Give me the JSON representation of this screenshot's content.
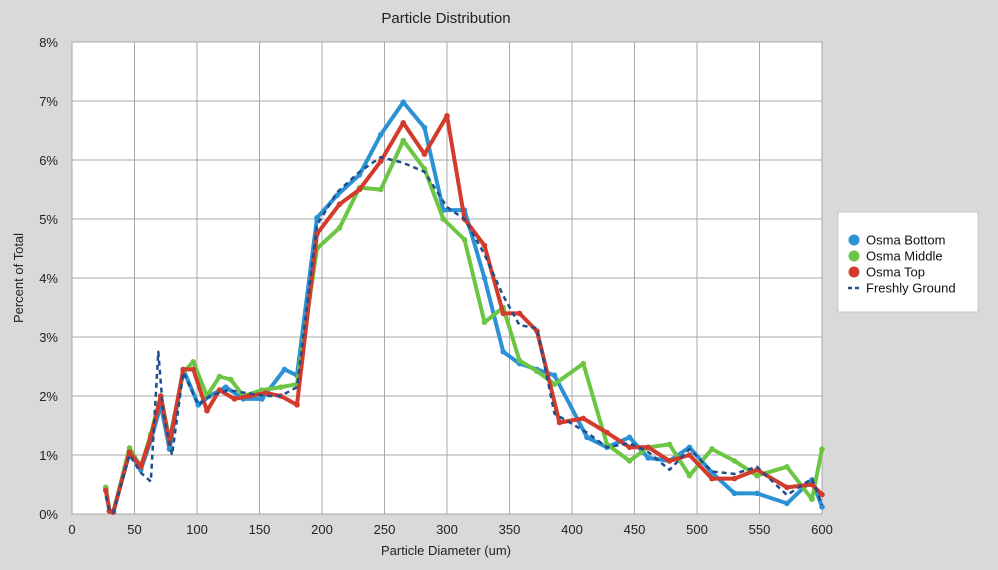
{
  "chart_data": {
    "type": "line",
    "title": "Particle Distribution",
    "xlabel": "Particle Diameter (um)",
    "ylabel": "Percent of Total",
    "xlim": [
      0,
      600
    ],
    "ylim": [
      0,
      8
    ],
    "xticks": [
      0,
      50,
      100,
      150,
      200,
      250,
      300,
      350,
      400,
      450,
      500,
      550,
      600
    ],
    "xtick_labels": [
      "0",
      "50",
      "100",
      "150",
      "200",
      "250",
      "300",
      "350",
      "400",
      "450",
      "500",
      "550",
      "600"
    ],
    "yticks": [
      0,
      1,
      2,
      3,
      4,
      5,
      6,
      7,
      8
    ],
    "ytick_labels": [
      "0%",
      "1%",
      "2%",
      "3%",
      "4%",
      "5%",
      "6%",
      "7%",
      "8%"
    ],
    "grid": true,
    "legend_position": "right",
    "series": [
      {
        "name": "Osma Bottom",
        "color": "#2b92d6",
        "style": "solid",
        "x": [
          27,
          30,
          33,
          46,
          55,
          63,
          71,
          78,
          89,
          101,
          110,
          123,
          137,
          152,
          170,
          180,
          196,
          212,
          230,
          247,
          265,
          282,
          297,
          314,
          330,
          345,
          358,
          372,
          386,
          412,
          428,
          446,
          461,
          478,
          494,
          512,
          530,
          548,
          572,
          592,
          600
        ],
        "y": [
          0.45,
          0.05,
          0.03,
          1.05,
          0.75,
          1.25,
          1.85,
          1.1,
          2.45,
          1.85,
          2.0,
          2.15,
          1.95,
          1.95,
          2.45,
          2.35,
          5.02,
          5.4,
          5.75,
          6.43,
          6.98,
          6.55,
          5.15,
          5.15,
          4.0,
          2.75,
          2.55,
          2.45,
          2.35,
          1.3,
          1.13,
          1.3,
          0.95,
          0.9,
          1.13,
          0.7,
          0.35,
          0.35,
          0.18,
          0.58,
          0.12
        ]
      },
      {
        "name": "Osma Middle",
        "color": "#6cc644",
        "style": "solid",
        "x": [
          27,
          30,
          33,
          46,
          55,
          63,
          71,
          78,
          89,
          97,
          108,
          118,
          127,
          137,
          152,
          167,
          180,
          196,
          214,
          230,
          247,
          265,
          282,
          297,
          314,
          330,
          345,
          358,
          372,
          386,
          409,
          428,
          446,
          461,
          478,
          494,
          512,
          530,
          548,
          572,
          592,
          600
        ],
        "y": [
          0.45,
          0.05,
          0.03,
          1.12,
          0.8,
          1.35,
          2.0,
          1.25,
          2.4,
          2.58,
          2.0,
          2.33,
          2.28,
          2.0,
          2.1,
          2.15,
          2.2,
          4.5,
          4.85,
          5.53,
          5.5,
          6.33,
          5.85,
          5.0,
          4.65,
          3.25,
          3.5,
          2.6,
          2.42,
          2.2,
          2.55,
          1.18,
          0.9,
          1.13,
          1.18,
          0.65,
          1.1,
          0.9,
          0.65,
          0.8,
          0.25,
          1.1
        ]
      },
      {
        "name": "Osma Top",
        "color": "#d33b2c",
        "style": "solid",
        "x": [
          27,
          30,
          33,
          46,
          55,
          63,
          71,
          78,
          89,
          97,
          108,
          118,
          130,
          142,
          155,
          167,
          180,
          196,
          214,
          230,
          247,
          265,
          282,
          300,
          314,
          330,
          345,
          358,
          372,
          390,
          409,
          428,
          446,
          461,
          478,
          494,
          512,
          530,
          548,
          572,
          592,
          600
        ],
        "y": [
          0.4,
          0.05,
          0.03,
          1.05,
          0.8,
          1.3,
          2.0,
          1.2,
          2.45,
          2.45,
          1.75,
          2.1,
          1.95,
          2.0,
          2.05,
          2.0,
          1.85,
          4.75,
          5.25,
          5.5,
          5.98,
          6.63,
          6.1,
          6.75,
          5.0,
          4.55,
          3.4,
          3.4,
          3.1,
          1.55,
          1.62,
          1.38,
          1.13,
          1.13,
          0.9,
          1.0,
          0.6,
          0.6,
          0.75,
          0.45,
          0.5,
          0.33
        ]
      },
      {
        "name": "Freshly Ground",
        "color": "#1f4e8c",
        "style": "dashed",
        "x": [
          27,
          30,
          33,
          46,
          55,
          63,
          69,
          73,
          80,
          89,
          101,
          110,
          125,
          140,
          155,
          167,
          180,
          196,
          212,
          230,
          247,
          265,
          282,
          300,
          314,
          330,
          345,
          358,
          372,
          386,
          412,
          428,
          446,
          461,
          478,
          494,
          512,
          530,
          548,
          572,
          592,
          600
        ],
        "y": [
          0.3,
          0.05,
          0.03,
          1.0,
          0.7,
          0.55,
          2.75,
          1.7,
          1.0,
          2.4,
          1.85,
          2.0,
          2.1,
          2.05,
          2.0,
          2.0,
          2.15,
          4.9,
          5.45,
          5.8,
          6.05,
          5.95,
          5.8,
          5.2,
          5.0,
          4.4,
          3.7,
          3.2,
          3.15,
          1.7,
          1.38,
          1.13,
          1.2,
          1.05,
          0.75,
          1.1,
          0.72,
          0.68,
          0.8,
          0.32,
          0.6,
          0.15
        ]
      }
    ]
  }
}
